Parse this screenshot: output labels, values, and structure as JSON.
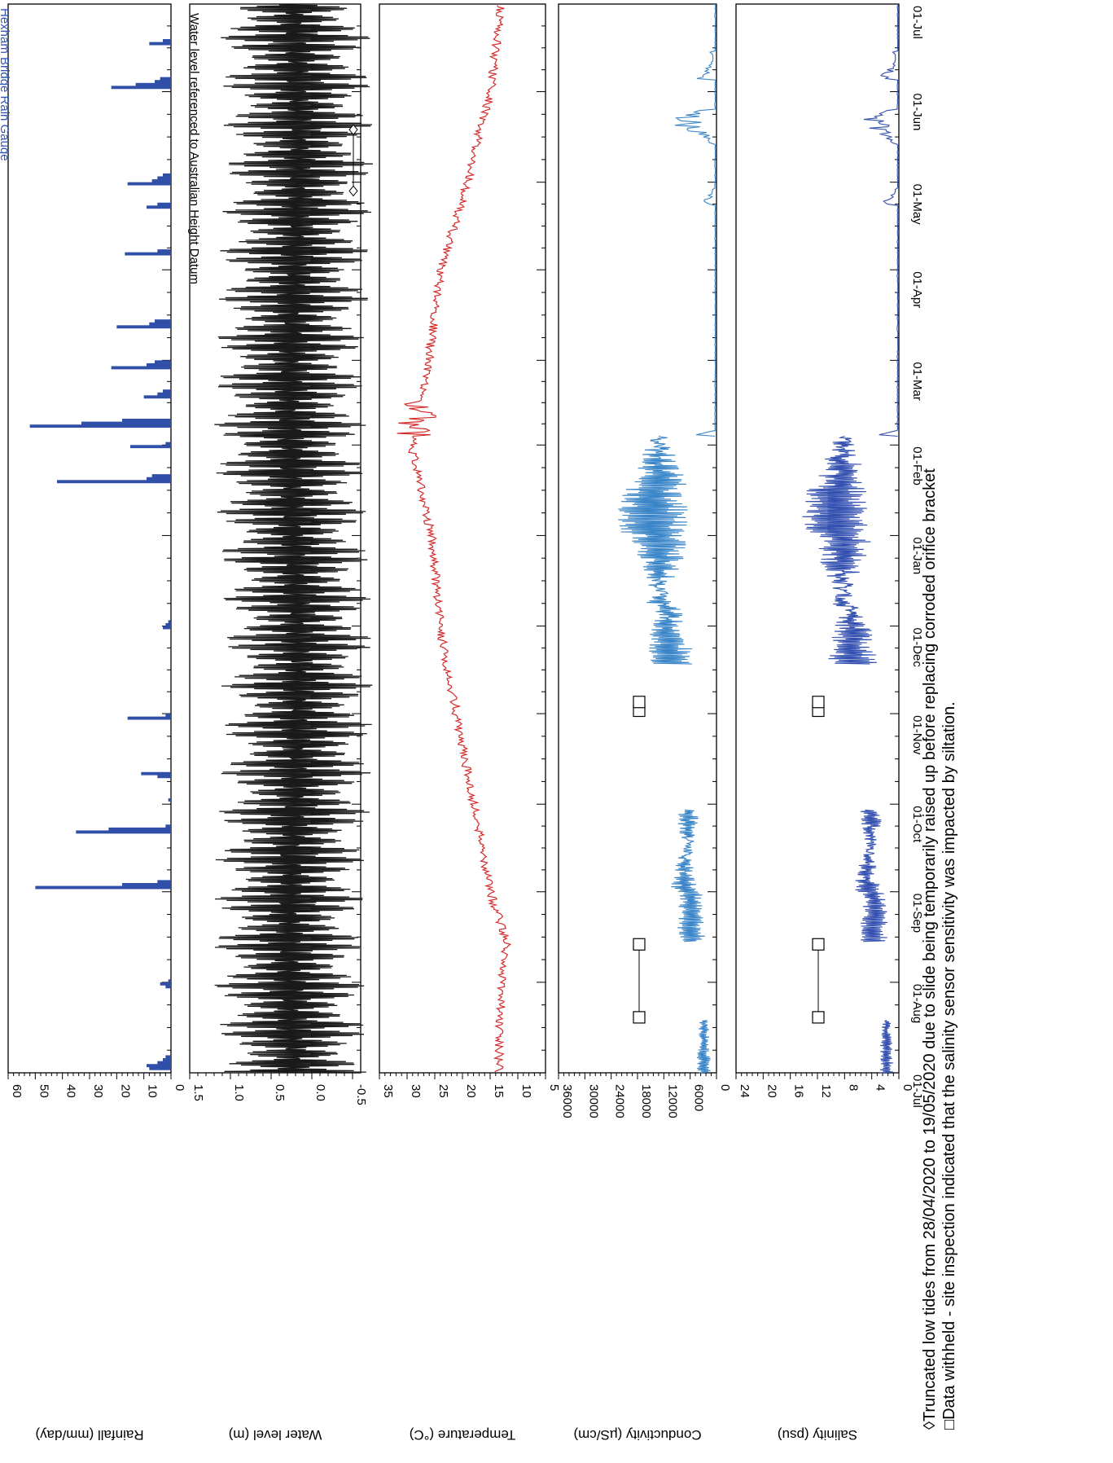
{
  "title_partial": "Hexham Bridge Rain Gauge",
  "date_ticks": [
    "01-Jul",
    "01-Aug",
    "01-Sep",
    "01-Oct",
    "01-Nov",
    "01-Dec",
    "01-Jan",
    "01-Feb",
    "01-Mar",
    "01-Apr",
    "01-May",
    "01-Jun",
    "01-Jul"
  ],
  "panel_annotation": "Water level referenced to Australian Height Datum",
  "footnotes": [
    "◊Truncated low tides from 28/04/2020 to 19/05/2020 due to slide being temporarily raised up before replacing corroded orifice bracket",
    "□Data withheld - site inspection indicated that the salinity sensor sensitivity was impacted by siltation."
  ],
  "colors": {
    "rainfall": "#2f4fa8",
    "water_level": "#1a1a1a",
    "temperature": "#d42a2a",
    "conductivity": "#3a85c8",
    "salinity": "#3350b0"
  },
  "chart_data": [
    {
      "type": "bar",
      "ylabel": "Rainfall (mm/day)",
      "ylim": [
        0,
        60
      ],
      "yticks": [
        "0",
        "10",
        "20",
        "30",
        "40",
        "50",
        "60"
      ],
      "x_range": [
        "2019-07-01",
        "2020-07-01"
      ],
      "values_by_day": {
        "1": 8,
        "2": 9,
        "3": 5,
        "4": 3,
        "5": 2,
        "29": 2,
        "30": 4,
        "31": 1,
        "63": 50,
        "64": 18,
        "65": 5,
        "82": 35,
        "83": 23,
        "84": 2,
        "93": 1,
        "101": 5,
        "102": 11,
        "121": 16,
        "122": 2,
        "152": 3,
        "153": 2,
        "154": 1,
        "202": 42,
        "203": 9,
        "204": 7,
        "214": 15,
        "215": 2,
        "221": 52,
        "222": 33,
        "223": 18,
        "231": 10,
        "232": 5,
        "233": 3,
        "241": 22,
        "242": 9,
        "243": 6,
        "255": 20,
        "256": 8,
        "257": 6,
        "280": 17,
        "281": 5,
        "296": 9,
        "297": 5,
        "304": 16,
        "305": 7,
        "306": 5,
        "307": 3,
        "337": 22,
        "338": 13,
        "339": 6,
        "340": 4,
        "352": 8,
        "353": 3
      }
    },
    {
      "type": "line",
      "ylabel": "Water level (m)",
      "ylim": [
        -0.6,
        1.5
      ],
      "yticks": [
        "-0.5",
        "0.0",
        "0.5",
        "1.0",
        "1.5"
      ],
      "series": [
        {
          "name": "",
          "high_peak": 1.25,
          "low_trough": -0.55
        }
      ]
    },
    {
      "type": "line",
      "ylabel": "Temperature (°C)",
      "ylim": [
        5,
        35
      ],
      "yticks": [
        "5",
        "10",
        "15",
        "20",
        "25",
        "30",
        "35"
      ],
      "series": [
        {
          "name": "",
          "points": [
            [
              0,
              13.5
            ],
            [
              30,
              13
            ],
            [
              45,
              12
            ],
            [
              62,
              15
            ],
            [
              92,
              18
            ],
            [
              122,
              21
            ],
            [
              152,
              24
            ],
            [
              183,
              25.5
            ],
            [
              213,
              29
            ],
            [
              225,
              28
            ],
            [
              245,
              26
            ],
            [
              275,
              24
            ],
            [
              305,
              19
            ],
            [
              322,
              17
            ],
            [
              335,
              15
            ],
            [
              366,
              13
            ]
          ]
        }
      ]
    },
    {
      "type": "line",
      "ylabel": "Conductivity (µS/cm)",
      "ylim": [
        0,
        36000
      ],
      "yticks": [
        "0",
        "6000",
        "12000",
        "18000",
        "24000",
        "30000",
        "36000"
      ],
      "series": [
        {
          "name": "",
          "segments": [
            [
              0,
              18
            ],
            [
              45,
              90
            ],
            [
              140,
              218
            ],
            [
              223,
              366
            ]
          ]
        }
      ]
    },
    {
      "type": "line",
      "ylabel": "Salinity (psu)",
      "ylim": [
        0,
        24
      ],
      "yticks": [
        "0",
        "4",
        "8",
        "12",
        "16",
        "20",
        "24"
      ],
      "series": [
        {
          "name": "",
          "segments": [
            [
              0,
              18
            ],
            [
              45,
              90
            ],
            [
              140,
              218
            ],
            [
              223,
              366
            ]
          ]
        }
      ]
    }
  ]
}
